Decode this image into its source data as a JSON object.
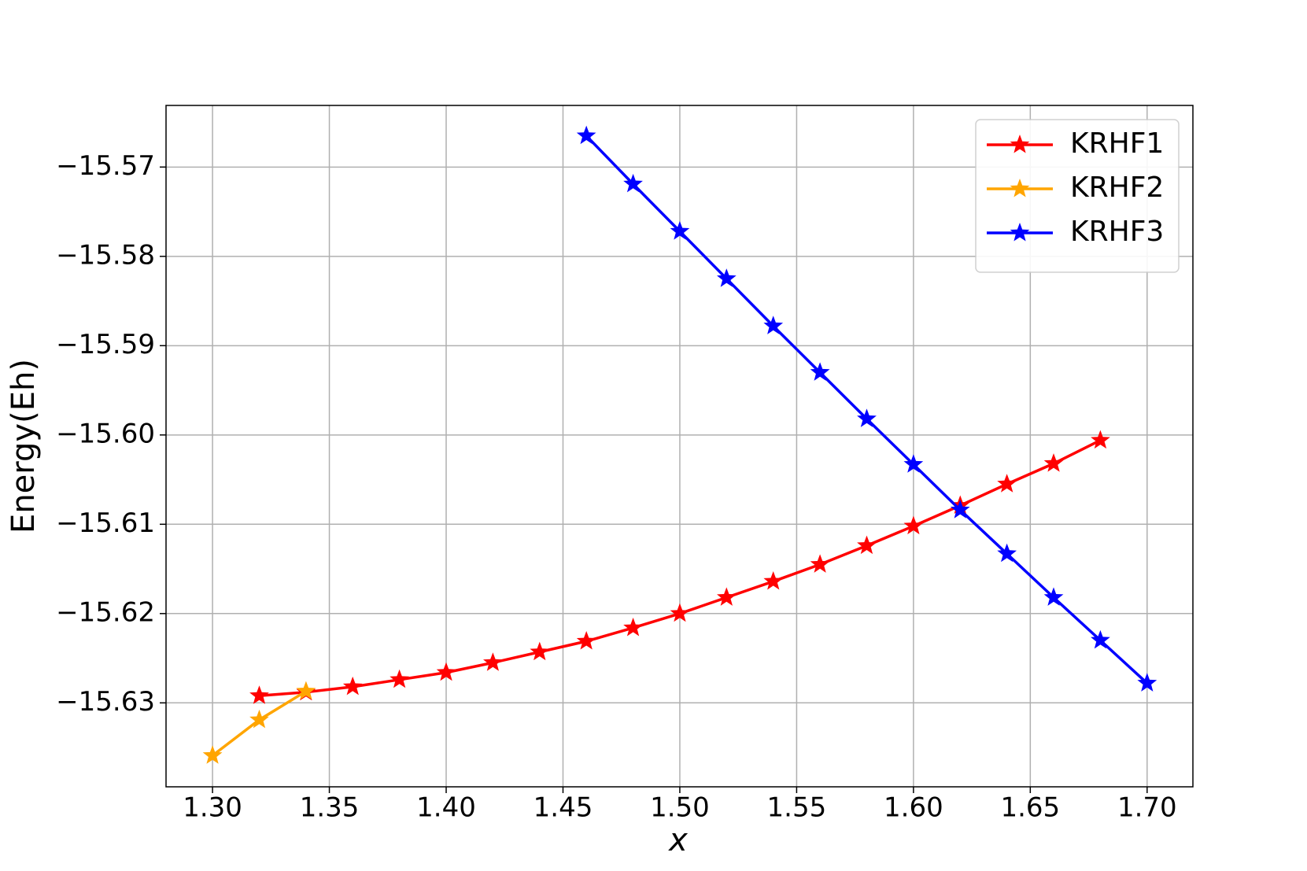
{
  "chart_data": {
    "type": "line",
    "xlabel": "x",
    "ylabel": "Energy(Eh)",
    "xlim": [
      1.2801,
      1.7196
    ],
    "ylim": [
      -15.6394,
      -15.5631
    ],
    "xticks": [
      {
        "value": 1.3,
        "label": "1.30"
      },
      1.35,
      {
        "value": 1.4,
        "label": "1.40"
      },
      1.45,
      {
        "value": 1.5,
        "label": "1.50"
      },
      1.55,
      {
        "value": 1.6,
        "label": "1.60"
      },
      1.65,
      {
        "value": 1.7,
        "label": "1.70"
      }
    ],
    "yticks": [
      {
        "value": -15.57,
        "label": "−15.57"
      },
      {
        "value": -15.58,
        "label": "−15.58"
      },
      {
        "value": -15.59,
        "label": "−15.59"
      },
      {
        "value": -15.6,
        "label": "−15.60"
      },
      {
        "value": -15.61,
        "label": "−15.61"
      },
      {
        "value": -15.62,
        "label": "−15.62"
      },
      {
        "value": -15.63,
        "label": "−15.63"
      }
    ],
    "grid": true,
    "legend": "upper right",
    "series": [
      {
        "name": "KRHF1",
        "color": "#ff0000",
        "x": [
          1.32,
          1.34,
          1.36,
          1.38,
          1.4,
          1.42,
          1.44,
          1.46,
          1.48,
          1.5,
          1.52,
          1.54,
          1.56,
          1.58,
          1.6,
          1.62,
          1.64,
          1.66,
          1.68
        ],
        "values": [
          -15.6292,
          -15.6288,
          -15.6282,
          -15.6274,
          -15.6266,
          -15.6255,
          -15.6243,
          -15.6231,
          -15.6216,
          -15.62,
          -15.6182,
          -15.6164,
          -15.6145,
          -15.6124,
          -15.6102,
          -15.6079,
          -15.6055,
          -15.6032,
          -15.6006
        ]
      },
      {
        "name": "KRHF2",
        "color": "#ffa500",
        "x": [
          1.3,
          1.32,
          1.34
        ],
        "values": [
          -15.6359,
          -15.6319,
          -15.6287
        ]
      },
      {
        "name": "KRHF3",
        "color": "#0000ff",
        "x": [
          1.46,
          1.48,
          1.5,
          1.52,
          1.54,
          1.56,
          1.58,
          1.6,
          1.62,
          1.64,
          1.66,
          1.68,
          1.7
        ],
        "values": [
          -15.5665,
          -15.5719,
          -15.5772,
          -15.5825,
          -15.5878,
          -15.593,
          -15.5982,
          -15.6033,
          -15.6084,
          -15.6133,
          -15.6182,
          -15.623,
          -15.6278
        ]
      }
    ]
  }
}
